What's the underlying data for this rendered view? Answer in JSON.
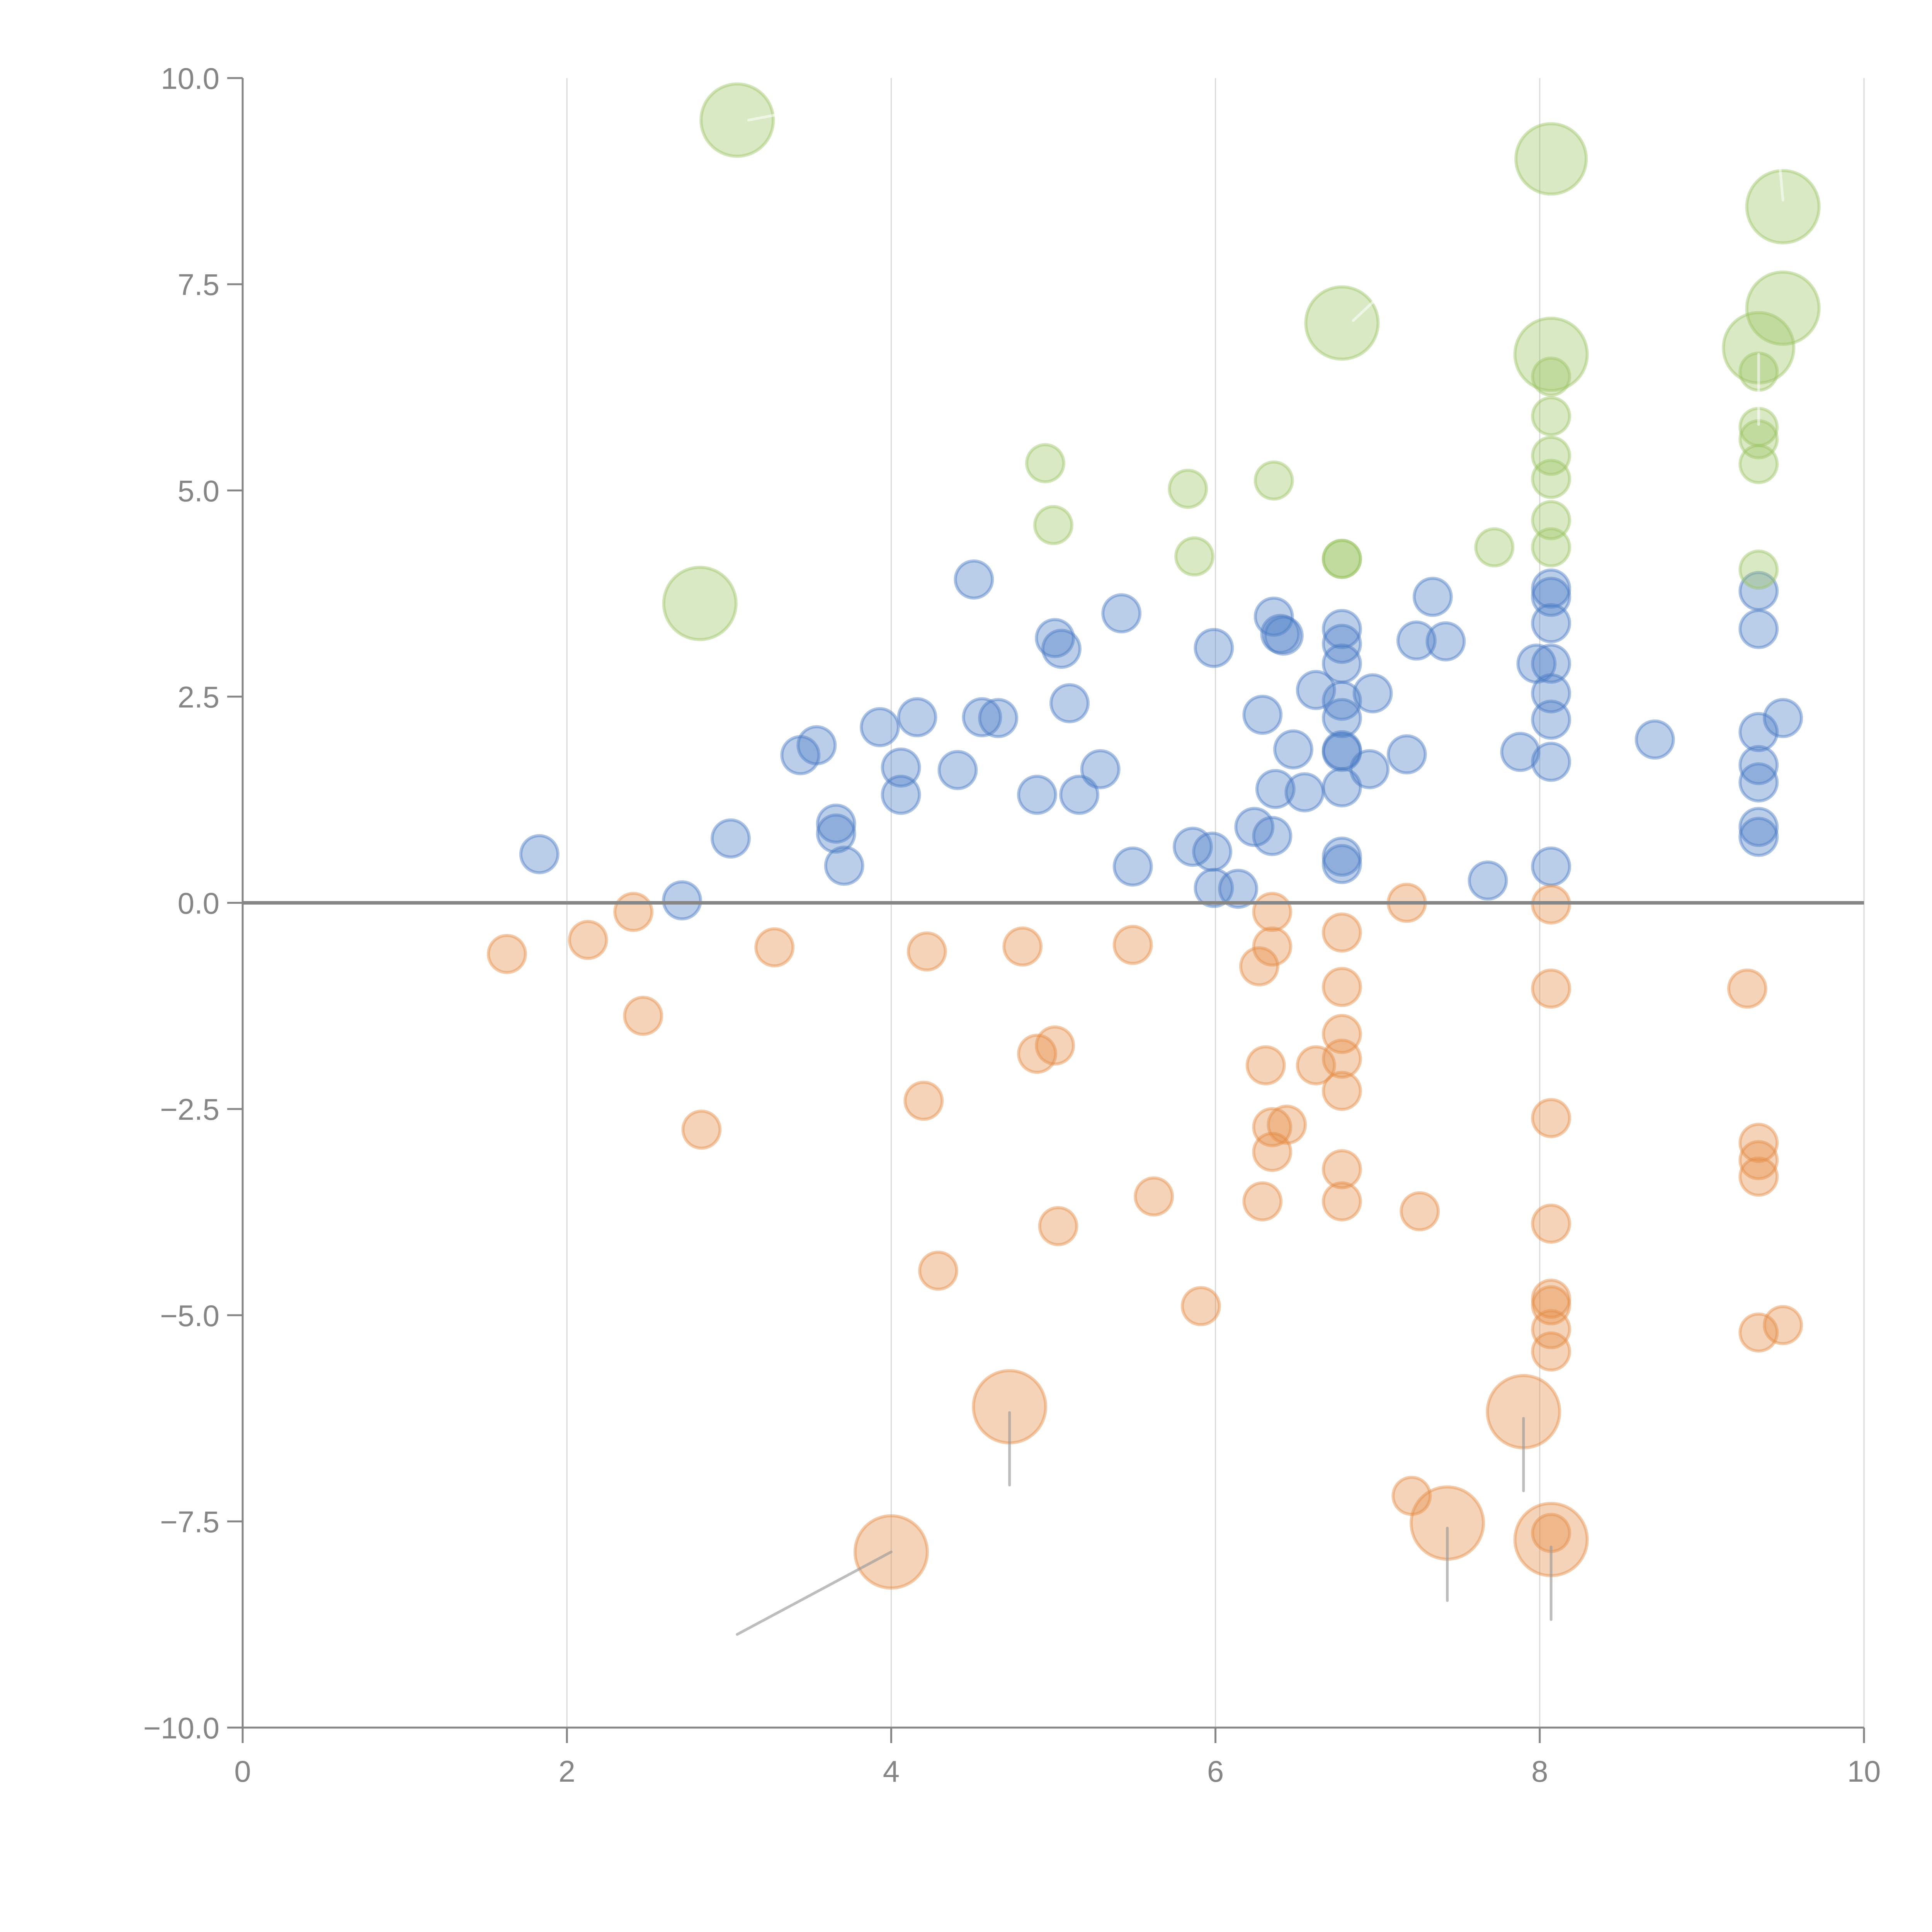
{
  "chart_data": {
    "type": "scatter",
    "subtype": "bubble",
    "title": "",
    "xlabel": "",
    "ylabel": "",
    "xlim": [
      0,
      10
    ],
    "ylim": [
      -10,
      10
    ],
    "grid": "vertical",
    "legend": "none",
    "x_ticks": [
      "0",
      "2",
      "4",
      "6",
      "8",
      "10"
    ],
    "x_tick_values": [
      0,
      2,
      4,
      6,
      8,
      10
    ],
    "y_ticks": [
      "10.0",
      "7.5",
      "5.0",
      "2.5",
      "0.0",
      "−2.5",
      "−5.0",
      "−7.5",
      "−10.0"
    ],
    "y_tick_values": [
      10,
      7.5,
      5,
      2.5,
      0,
      -2.5,
      -5,
      -7.5,
      -10
    ],
    "series": [
      {
        "name": "blue",
        "color": "#4a7bc4",
        "points": [
          [
            1.83,
            0.59,
            1
          ],
          [
            2.71,
            0.03,
            1
          ],
          [
            3.01,
            0.78,
            1
          ],
          [
            3.44,
            1.79,
            1
          ],
          [
            3.54,
            1.91,
            1
          ],
          [
            3.66,
            0.96,
            1
          ],
          [
            3.66,
            0.84,
            1
          ],
          [
            3.71,
            0.45,
            1
          ],
          [
            3.93,
            2.13,
            1
          ],
          [
            4.06,
            1.64,
            1
          ],
          [
            4.06,
            1.31,
            1
          ],
          [
            4.16,
            2.25,
            1
          ],
          [
            4.41,
            1.61,
            1
          ],
          [
            4.51,
            3.92,
            1
          ],
          [
            4.56,
            2.25,
            1
          ],
          [
            4.66,
            2.24,
            1
          ],
          [
            4.9,
            1.31,
            1
          ],
          [
            5.01,
            3.21,
            1
          ],
          [
            5.05,
            3.08,
            1
          ],
          [
            5.1,
            2.42,
            1
          ],
          [
            5.16,
            1.31,
            1
          ],
          [
            5.29,
            1.62,
            1
          ],
          [
            5.42,
            3.51,
            1
          ],
          [
            5.49,
            0.44,
            1
          ],
          [
            5.86,
            0.68,
            1
          ],
          [
            5.99,
            3.09,
            1
          ],
          [
            5.98,
            0.62,
            1
          ],
          [
            5.99,
            0.18,
            1
          ],
          [
            6.14,
            0.17,
            1
          ],
          [
            6.24,
            0.92,
            1
          ],
          [
            6.29,
            2.28,
            1
          ],
          [
            6.35,
            0.81,
            1
          ],
          [
            6.36,
            3.47,
            1
          ],
          [
            6.37,
            1.38,
            1
          ],
          [
            6.4,
            3.26,
            1
          ],
          [
            6.42,
            3.24,
            1
          ],
          [
            6.48,
            1.86,
            1
          ],
          [
            6.55,
            1.34,
            1
          ],
          [
            6.62,
            2.58,
            1
          ],
          [
            6.78,
            3.32,
            1
          ],
          [
            6.78,
            3.14,
            1
          ],
          [
            6.78,
            2.9,
            1
          ],
          [
            6.78,
            2.45,
            1
          ],
          [
            6.78,
            2.24,
            1
          ],
          [
            6.78,
            1.85,
            1
          ],
          [
            6.78,
            1.83,
            1
          ],
          [
            6.78,
            1.4,
            1
          ],
          [
            6.78,
            0.56,
            1
          ],
          [
            6.78,
            0.47,
            1
          ],
          [
            6.95,
            1.62,
            1
          ],
          [
            6.97,
            2.54,
            1
          ],
          [
            7.18,
            1.8,
            1
          ],
          [
            7.24,
            3.18,
            1
          ],
          [
            7.34,
            3.71,
            1
          ],
          [
            7.42,
            3.17,
            1
          ],
          [
            7.68,
            0.27,
            1
          ],
          [
            7.88,
            1.83,
            1
          ],
          [
            7.98,
            2.9,
            1
          ],
          [
            8.07,
            3.81,
            1
          ],
          [
            8.07,
            3.71,
            1
          ],
          [
            8.07,
            3.39,
            1
          ],
          [
            8.07,
            2.9,
            1
          ],
          [
            8.07,
            2.54,
            1
          ],
          [
            8.07,
            2.22,
            1
          ],
          [
            8.07,
            1.71,
            1
          ],
          [
            8.07,
            0.44,
            1
          ],
          [
            8.71,
            1.98,
            1
          ],
          [
            9.35,
            3.78,
            1
          ],
          [
            9.35,
            3.32,
            1
          ],
          [
            9.35,
            2.07,
            1
          ],
          [
            9.35,
            1.67,
            1
          ],
          [
            9.35,
            1.46,
            1
          ],
          [
            9.35,
            0.92,
            1
          ],
          [
            9.35,
            0.8,
            1
          ],
          [
            9.5,
            2.24,
            1
          ]
        ]
      },
      {
        "name": "orange",
        "color": "#e58b45",
        "points": [
          [
            1.63,
            -0.62,
            1
          ],
          [
            2.13,
            -0.45,
            1
          ],
          [
            2.41,
            -0.11,
            1
          ],
          [
            2.47,
            -1.37,
            1
          ],
          [
            2.83,
            -2.75,
            1
          ],
          [
            3.28,
            -0.54,
            1
          ],
          [
            4.22,
            -0.59,
            1
          ],
          [
            4.2,
            -2.4,
            1
          ],
          [
            4.29,
            -4.46,
            1
          ],
          [
            4.81,
            -0.53,
            1
          ],
          [
            4.9,
            -1.83,
            1
          ],
          [
            5.01,
            -1.73,
            1
          ],
          [
            5.03,
            -3.92,
            1
          ],
          [
            5.49,
            -0.51,
            1
          ],
          [
            5.62,
            -3.56,
            1
          ],
          [
            5.91,
            -4.89,
            1
          ],
          [
            6.27,
            -0.77,
            1
          ],
          [
            6.31,
            -1.97,
            1
          ],
          [
            6.35,
            -0.11,
            1
          ],
          [
            6.35,
            -0.53,
            1
          ],
          [
            6.35,
            -2.72,
            1
          ],
          [
            6.35,
            -3.02,
            1
          ],
          [
            6.44,
            -2.69,
            1
          ],
          [
            6.29,
            -3.62,
            1
          ],
          [
            6.62,
            -1.97,
            1
          ],
          [
            6.78,
            -0.36,
            1
          ],
          [
            6.78,
            -1.02,
            1
          ],
          [
            6.78,
            -1.59,
            1
          ],
          [
            6.78,
            -1.89,
            1
          ],
          [
            6.78,
            -2.28,
            1
          ],
          [
            6.78,
            -3.23,
            1
          ],
          [
            6.78,
            -3.62,
            1
          ],
          [
            7.18,
            0.0,
            1
          ],
          [
            7.26,
            -3.74,
            1
          ],
          [
            7.21,
            -7.19,
            1
          ],
          [
            8.07,
            -0.02,
            1
          ],
          [
            8.07,
            -1.04,
            1
          ],
          [
            8.07,
            -2.61,
            1
          ],
          [
            8.07,
            -3.89,
            1
          ],
          [
            8.07,
            -4.8,
            1
          ],
          [
            8.07,
            -4.88,
            1
          ],
          [
            8.07,
            -5.17,
            1
          ],
          [
            8.07,
            -5.44,
            1
          ],
          [
            8.07,
            -7.64,
            1
          ],
          [
            9.28,
            -1.04,
            1
          ],
          [
            9.35,
            -2.91,
            1
          ],
          [
            9.35,
            -3.12,
            1
          ],
          [
            9.35,
            -3.32,
            1
          ],
          [
            9.35,
            -5.21,
            1
          ],
          [
            9.5,
            -5.12,
            1
          ],
          [
            4.73,
            -6.11,
            3.8
          ],
          [
            4.0,
            -7.87,
            3.8
          ],
          [
            7.9,
            -6.17,
            3.8
          ],
          [
            7.43,
            -7.52,
            3.8
          ],
          [
            8.07,
            -7.72,
            3.8
          ]
        ]
      },
      {
        "name": "green",
        "color": "#9bc463",
        "points": [
          [
            4.95,
            5.33,
            1
          ],
          [
            5.83,
            5.02,
            1
          ],
          [
            5.0,
            4.58,
            1
          ],
          [
            5.87,
            4.2,
            1
          ],
          [
            6.36,
            5.12,
            1
          ],
          [
            6.78,
            4.17,
            1
          ],
          [
            6.78,
            4.17,
            1
          ],
          [
            7.72,
            4.31,
            1
          ],
          [
            8.07,
            6.38,
            1
          ],
          [
            8.07,
            5.9,
            1
          ],
          [
            8.07,
            5.42,
            1
          ],
          [
            8.07,
            5.14,
            1
          ],
          [
            8.07,
            4.64,
            1
          ],
          [
            8.07,
            4.31,
            1
          ],
          [
            9.35,
            6.44,
            1
          ],
          [
            9.35,
            5.77,
            1
          ],
          [
            9.35,
            5.62,
            1
          ],
          [
            9.35,
            5.32,
            1
          ],
          [
            9.35,
            4.04,
            1
          ],
          [
            3.05,
            9.49,
            3.8
          ],
          [
            2.82,
            3.63,
            3.8
          ],
          [
            8.07,
            9.02,
            3.6
          ],
          [
            9.5,
            8.44,
            3.8
          ],
          [
            9.5,
            7.21,
            3.8
          ],
          [
            6.78,
            7.03,
            3.8
          ],
          [
            8.07,
            6.65,
            3.8
          ],
          [
            9.35,
            6.73,
            3.6
          ]
        ]
      }
    ],
    "leader_lines": [
      {
        "series": "orange",
        "from": [
          4.0,
          -7.87
        ],
        "to": [
          3.05,
          -8.87
        ]
      },
      {
        "series": "orange",
        "from": [
          4.73,
          -6.18
        ],
        "to": [
          4.73,
          -7.06
        ]
      },
      {
        "series": "orange",
        "from": [
          7.9,
          -6.25
        ],
        "to": [
          7.9,
          -7.13
        ]
      },
      {
        "series": "orange",
        "from": [
          7.43,
          -7.58
        ],
        "to": [
          7.43,
          -8.46
        ]
      },
      {
        "series": "orange",
        "from": [
          8.07,
          -7.81
        ],
        "to": [
          8.07,
          -8.69
        ]
      },
      {
        "series": "green",
        "from": [
          3.12,
          9.49
        ],
        "to": [
          3.28,
          9.55
        ]
      },
      {
        "series": "green",
        "from": [
          6.85,
          7.06
        ],
        "to": [
          6.98,
          7.3
        ]
      },
      {
        "series": "green",
        "from": [
          9.5,
          8.52
        ],
        "to": [
          9.48,
          8.95
        ]
      },
      {
        "series": "green",
        "from": [
          9.35,
          5.8
        ],
        "to": [
          9.35,
          6.65
        ]
      }
    ]
  }
}
